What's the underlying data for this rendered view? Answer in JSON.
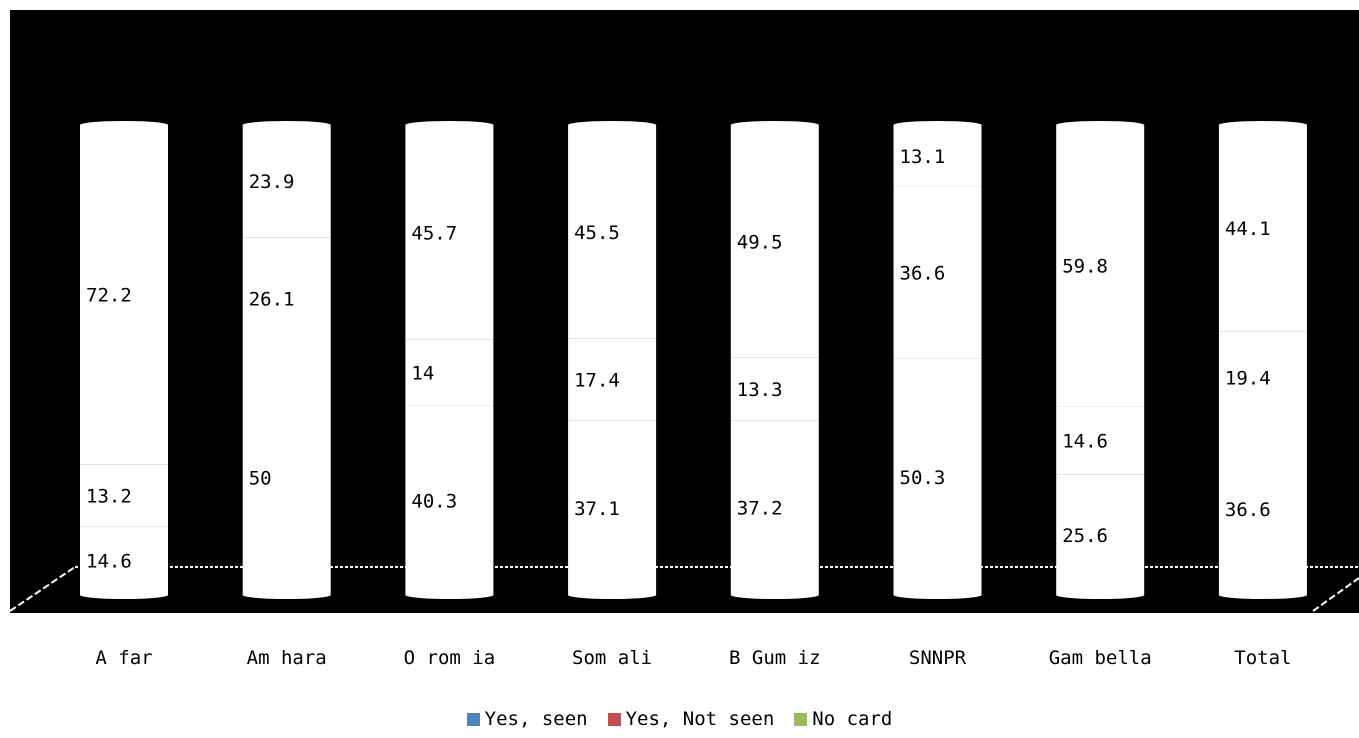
{
  "chart_data": {
    "type": "bar",
    "stacked": true,
    "style": "3d-cylinder",
    "categories": [
      "Afar",
      "Amhara",
      "Oromia",
      "Somali",
      "BGumiz",
      "SNNPR",
      "Gambella",
      "Total"
    ],
    "category_labels": [
      "A far",
      "Am hara",
      "O rom ia",
      "Som ali",
      "B Gum iz",
      "SNNPR",
      "Gam bella",
      "Total"
    ],
    "series": [
      {
        "name": "Yes, seen",
        "legend_label": "Yes, seen",
        "color": "#4F81BD",
        "values": [
          14.6,
          50,
          40.3,
          37.1,
          37.2,
          50.3,
          25.6,
          36.6
        ],
        "labels": [
          "14.6",
          "50",
          "40.3",
          "37.1",
          "37.2",
          "50.3",
          "25.6",
          "36.6"
        ]
      },
      {
        "name": "Yes, Not seen",
        "legend_label": "Yes, Not seen",
        "color": "#C0504D",
        "values": [
          13.2,
          26.1,
          14,
          17.4,
          13.3,
          36.6,
          14.6,
          19.4
        ],
        "labels": [
          "13.2",
          "26.1",
          "14",
          "17.4",
          "13.3",
          "36.6",
          "14.6",
          "19.4"
        ]
      },
      {
        "name": "No card",
        "legend_label": "No card",
        "color": "#9BBB59",
        "values": [
          72.2,
          23.9,
          45.7,
          45.5,
          49.5,
          13.1,
          59.8,
          44.1
        ],
        "labels": [
          "72.2",
          "23.9",
          "45.7",
          "45.5",
          "49.5",
          "13.1",
          "59.8",
          "44.1"
        ]
      }
    ],
    "ylim": [
      0,
      100
    ],
    "plot_background": "#000000",
    "bar_fill": "#ffffff",
    "legend_position": "bottom",
    "grid": false
  }
}
